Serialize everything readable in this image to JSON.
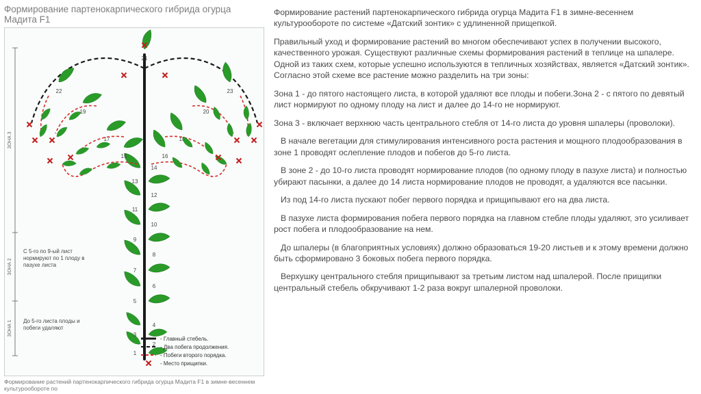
{
  "title": "Формирование партенокарпического гибрида огурца Мадита F1",
  "caption": "Формирование растений партенокарпического гибрида огурца Мадита F1 в зимне-весеннем культурообороте по",
  "paragraphs": [
    "Формирование растений партенокарпического гибрида огурца Мадита F1 в зимне-весеннем культурообороте по системе «Датский зонтик» с удлиненной прищепкой.",
    "Правильный уход и формирование растений во многом обеспечивают успех в получении высокого, качественного урожая. Существуют различные схемы формирования растений в теплице на шпалере. Одной из таких схем, которые успешно используются в тепличных хозяйствах, является «Датский зонтик». Согласно этой схеме все растение можно разделить на три зоны:",
    "Зона 1 - до пятого настоящего листа, в которой удаляют все плоды и побеги.Зона 2 - с пятого по девятый лист нормируют по одному плоду на лист и далее до 14-го не нормируют.",
    "Зона 3 - включает верхнюю часть центрального стебля от 14-го листа до уровня шпалеры (проволоки).",
    "В начале вегетации для стимулирования интенсивного роста растения и мощного плодообразования в зоне 1 проводят ослепление плодов и побегов до 5-го листа.",
    "В зоне 2 - до 10-го листа проводят нормирование плодов (по одному плоду в пазухе листа) и полностью убирают пасынки, а далее до 14 листа нормирование плодов не проводят, а удаляются все пасынки.",
    "Из под 14-го листа пускают побег первого порядка и прищипывают его на два листа.",
    "В пазухе листа формирования побега первого порядка на главном стебле плоды удаляют, это усиливает рост побега и плодообразование на нем.",
    "До шпалеры (в благоприятных условиях) должно образоваться 19-20 листьев и к этому времени должно быть сформировано 3 боковых побега первого порядка.",
    "Верхушку центрального стебля прищипывают за третьим листом над шпалерой. После прищипки центральный стебель обкручивают 1-2 раза вокруг шпалерной проволоки."
  ],
  "diagram": {
    "colors": {
      "leaf": "#2a9b29",
      "main_stem": "#1a1a1a",
      "red_shoot": "#d82a2a",
      "thin_dash": "#333333",
      "cross": "#c41f1f",
      "border": "#9aa0a6",
      "zone_bar": "#7a7a7a",
      "bg": "#f9fcfa"
    },
    "zone_labels": [
      "ЗОНА 1",
      "ЗОНА 2",
      "ЗОНА 3"
    ],
    "notes": {
      "zone1": "До 5-го листа плоды и побеги удаляют",
      "zone2": "С 5-го по 9-ый лист нормируют по 1 плоду в пазухе листа"
    },
    "legend": [
      {
        "label": "Главный стебель.",
        "style": "solid_black"
      },
      {
        "label": "Два побега продолжения.",
        "style": "dashed_black"
      },
      {
        "label": "Побеги второго порядка.",
        "style": "dashed_red"
      },
      {
        "label": "Место прищипки.",
        "style": "cross"
      }
    ],
    "leaf_numbers": [
      1,
      2,
      3,
      4,
      5,
      6,
      7,
      8,
      9,
      10,
      11,
      12,
      13,
      14,
      15,
      16,
      17,
      18,
      19,
      20,
      21,
      22,
      23
    ]
  }
}
